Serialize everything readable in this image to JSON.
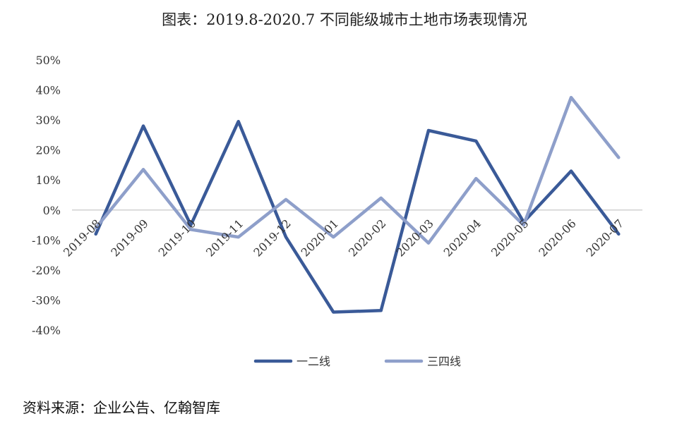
{
  "title": "图表：2019.8-2020.7 不同能级城市土地市场表现情况",
  "source": "资料来源：企业公告、亿翰智库",
  "chart_data": {
    "type": "line",
    "title": "图表：2019.8-2020.7 不同能级城市土地市场表现情况",
    "xlabel": "",
    "ylabel": "",
    "categories": [
      "2019-08",
      "2019-09",
      "2019-10",
      "2019-11",
      "2019-12",
      "2020-01",
      "2020-02",
      "2020-03",
      "2020-04",
      "2020-05",
      "2020-06",
      "2020-07"
    ],
    "ylim": [
      -40,
      50
    ],
    "yticks": [
      50,
      40,
      30,
      20,
      10,
      0,
      -10,
      -20,
      -30,
      -40
    ],
    "ytick_labels": [
      "50%",
      "40%",
      "30%",
      "20%",
      "10%",
      "0%",
      "-10%",
      "-20%",
      "-30%",
      "-40%"
    ],
    "grid": false,
    "zero_line": true,
    "legend_position": "bottom",
    "series": [
      {
        "name": "一二线",
        "color": "#3a5a98",
        "values": [
          -8,
          28,
          -5,
          29.5,
          -9,
          -34,
          -33.5,
          26.5,
          23,
          -4,
          13,
          -8
        ]
      },
      {
        "name": "三四线",
        "color": "#8e9fca",
        "values": [
          -6,
          13.5,
          -6.5,
          -9,
          3.5,
          -9,
          4,
          -11,
          10.5,
          -5,
          37.5,
          17.5
        ]
      }
    ]
  }
}
